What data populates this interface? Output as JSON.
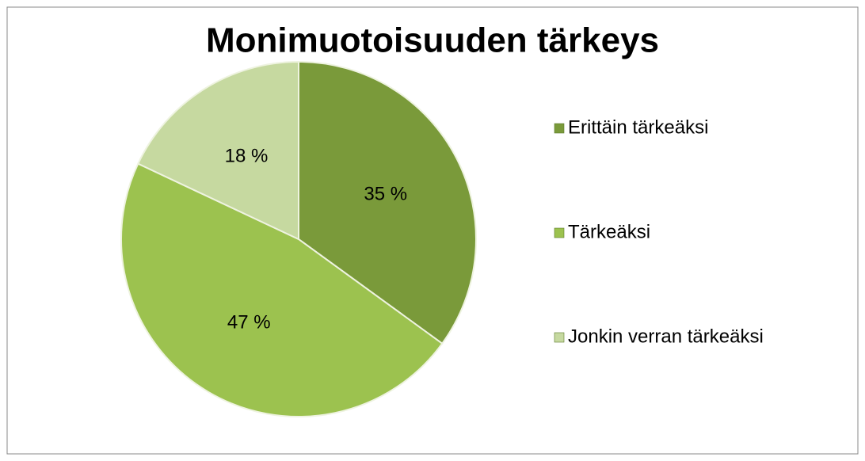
{
  "chart_data": {
    "type": "pie",
    "title": "Monimuotoisuuden tärkeys",
    "categories": [
      "Erittäin tärkeäksi",
      "Tärkeäksi",
      "Jonkin verran tärkeäksi"
    ],
    "values": [
      35,
      47,
      18
    ],
    "value_labels": [
      "35 %",
      "47 %",
      "18 %"
    ],
    "colors": [
      "#7a9a3a",
      "#9cc24f",
      "#c6d9a0"
    ],
    "legend": "right"
  }
}
